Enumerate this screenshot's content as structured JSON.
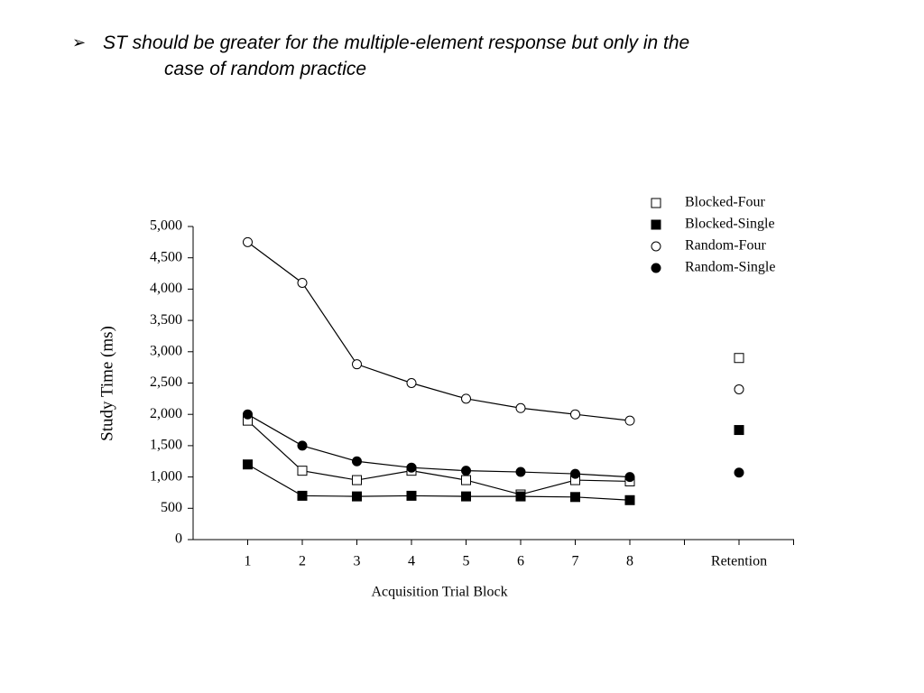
{
  "slide": {
    "bullet_lines": [
      "ST should be greater for the multiple-element response but only in the",
      "case of random practice"
    ]
  },
  "chart_data": {
    "type": "line",
    "xlabel": "Acquisition Trial Block",
    "ylabel": "Study Time (ms)",
    "categories": [
      "1",
      "2",
      "3",
      "4",
      "5",
      "6",
      "7",
      "8",
      null,
      "Retention"
    ],
    "series": [
      {
        "name": "Blocked-Four",
        "color": "#000000",
        "marker": "square",
        "filled": false,
        "values": [
          1900,
          1100,
          950,
          1100,
          950,
          720,
          950,
          930,
          null,
          2900
        ]
      },
      {
        "name": "Blocked-Single",
        "color": "#000000",
        "marker": "square",
        "filled": true,
        "values": [
          1200,
          700,
          690,
          700,
          690,
          690,
          680,
          630,
          null,
          1750
        ]
      },
      {
        "name": "Random-Four",
        "color": "#000000",
        "marker": "circle",
        "filled": false,
        "values": [
          4750,
          4100,
          2800,
          2500,
          2250,
          2100,
          2000,
          1900,
          null,
          2400
        ]
      },
      {
        "name": "Random-Single",
        "color": "#000000",
        "marker": "circle",
        "filled": true,
        "values": [
          2000,
          1500,
          1250,
          1150,
          1100,
          1080,
          1050,
          1000,
          null,
          1070
        ]
      }
    ],
    "ylim": [
      0,
      5000
    ],
    "yticks": [
      0,
      500,
      {
        "value": 1000,
        "label": "1,000"
      },
      {
        "value": 1500,
        "label": "1,500"
      },
      {
        "value": 2000,
        "label": "2,000"
      },
      {
        "value": 2500,
        "label": "2,500"
      },
      {
        "value": 3000,
        "label": "3,000"
      },
      {
        "value": 3500,
        "label": "3,500"
      },
      {
        "value": 4000,
        "label": "4,000"
      },
      {
        "value": 4500,
        "label": "4,500"
      },
      {
        "value": 5000,
        "label": "5,000"
      }
    ],
    "legend": "top-right",
    "grid": false
  }
}
